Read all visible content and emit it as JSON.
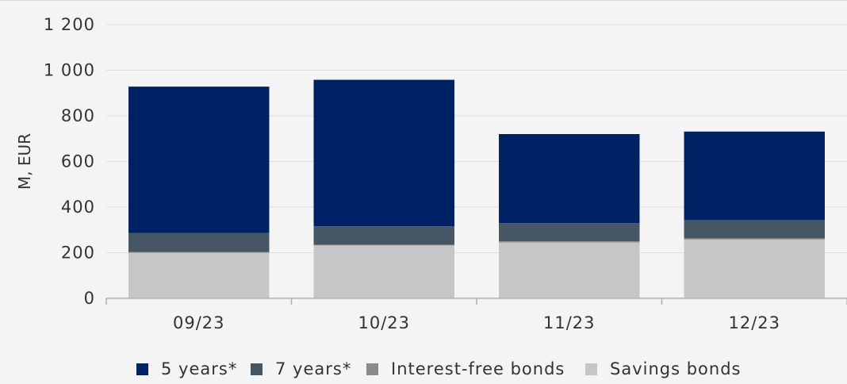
{
  "chart_data": {
    "type": "bar",
    "stacked": true,
    "categories": [
      "09/23",
      "10/23",
      "11/23",
      "12/23"
    ],
    "series": [
      {
        "name": "Savings bonds",
        "color": "#c6c6c8",
        "values": [
          200,
          232,
          245,
          258
        ]
      },
      {
        "name": "Interest-free bonds",
        "color": "#8a8a8a",
        "values": [
          3,
          3,
          5,
          5
        ]
      },
      {
        "name": "7 years*",
        "color": "#465665",
        "values": [
          83,
          81,
          80,
          80
        ]
      },
      {
        "name": "5 years*",
        "color": "#002163",
        "values": [
          642,
          642,
          390,
          388
        ]
      }
    ],
    "legend_order": [
      3,
      2,
      1,
      0
    ],
    "ylabel": "M, EUR",
    "ylim": [
      0,
      1200
    ],
    "yticks": [
      0,
      200,
      400,
      600,
      800,
      1000,
      1200
    ],
    "ytick_labels": [
      "0",
      "200",
      "400",
      "600",
      "800",
      "1 000",
      "1 200"
    ],
    "grid": true,
    "legend_position": "bottom"
  }
}
